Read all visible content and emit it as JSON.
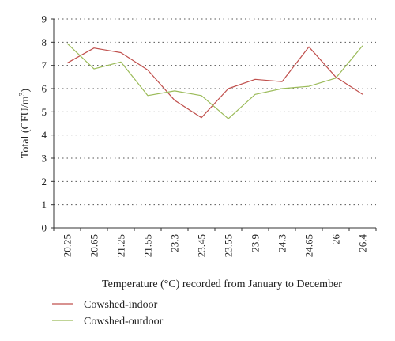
{
  "chart_data": {
    "type": "line",
    "categories": [
      "20.25",
      "20.65",
      "21.25",
      "21.55",
      "23.3",
      "23.45",
      "23.55",
      "23.9",
      "24.3",
      "24.65",
      "26",
      "26.4"
    ],
    "series": [
      {
        "name": "Cowshed-indoor",
        "color": "#c0504d",
        "values": [
          7.1,
          7.75,
          7.55,
          6.8,
          5.5,
          4.75,
          6.0,
          6.4,
          6.3,
          7.8,
          6.5,
          5.75
        ]
      },
      {
        "name": "Cowshed-outdoor",
        "color": "#9bbb59",
        "values": [
          7.95,
          6.85,
          7.15,
          5.7,
          5.9,
          5.7,
          4.7,
          5.75,
          6.0,
          6.1,
          6.45,
          7.85
        ]
      }
    ],
    "xlabel": "Temperature (°C) recorded from January to December",
    "ylabel_main": "Total (CFU/m",
    "ylabel_sup": "3",
    "ylabel_close": ")",
    "ylim": [
      0,
      9
    ],
    "yticks": [
      "0",
      "1",
      "2",
      "3",
      "4",
      "5",
      "6",
      "7",
      "8",
      "9"
    ],
    "grid": "horizontal-dotted",
    "legend_position": "bottom-left"
  }
}
